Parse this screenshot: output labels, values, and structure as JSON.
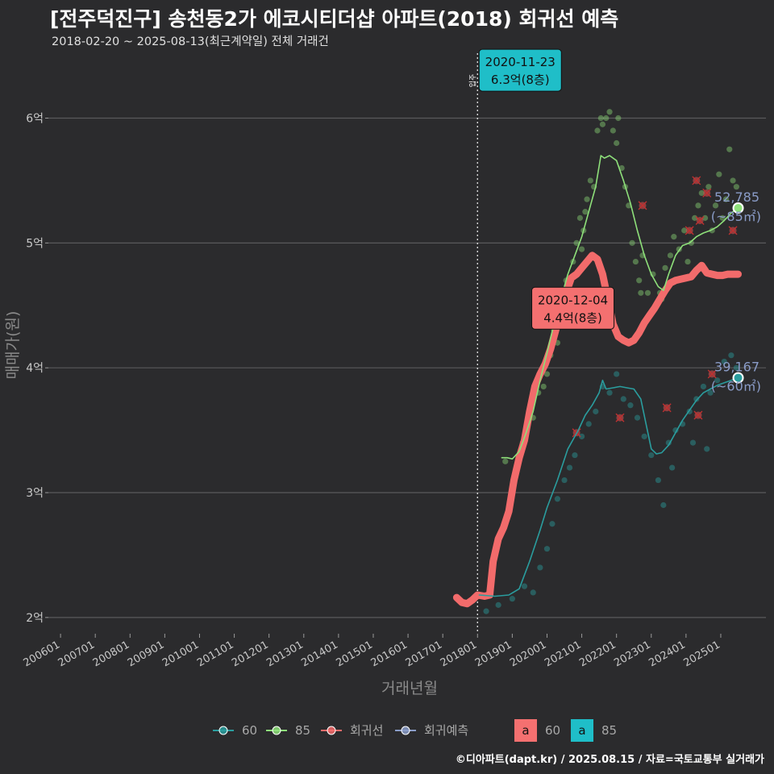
{
  "header": {
    "title": "[전주덕진구] 송천동2가 에코시티더샵 아파트(2018) 회귀선 예측",
    "subtitle": "2018-02-20 ~ 2025-08-13(최근계약일) 전체 거래건",
    "credit": "©디아파트(dapt.kr) / 2025.08.15 / 자료=국토교통부 실거래가"
  },
  "colors": {
    "background": "#2b2b2d",
    "grid": "#5a5a5c",
    "series_60": "#2a9d9e",
    "series_85": "#8ee07a",
    "regression": "#f26b6b",
    "prediction": "#8a9cc8",
    "callout_85": "#1fbec8",
    "callout_reg": "#f47070"
  },
  "chart_data": {
    "type": "scatter",
    "title": "[전주덕진구] 송천동2가 에코시티더샵 아파트(2018) 회귀선 예측",
    "xlabel": "거래년월",
    "ylabel": "매매가(원)",
    "xlim": [
      2005.65,
      2026.3
    ],
    "ylim": [
      1.87,
      6.52
    ],
    "y_ticks": [
      {
        "value": 2,
        "label": "2억"
      },
      {
        "value": 3,
        "label": "3억"
      },
      {
        "value": 4,
        "label": "4억"
      },
      {
        "value": 5,
        "label": "5억"
      },
      {
        "value": 6,
        "label": "6억"
      }
    ],
    "x_ticks": [
      {
        "value": 2006.0,
        "label": "200601"
      },
      {
        "value": 2007.0,
        "label": "200701"
      },
      {
        "value": 2008.0,
        "label": "200801"
      },
      {
        "value": 2009.0,
        "label": "200901"
      },
      {
        "value": 2010.0,
        "label": "201001"
      },
      {
        "value": 2011.0,
        "label": "201101"
      },
      {
        "value": 2012.0,
        "label": "201201"
      },
      {
        "value": 2013.0,
        "label": "201301"
      },
      {
        "value": 2014.0,
        "label": "201401"
      },
      {
        "value": 2015.0,
        "label": "201501"
      },
      {
        "value": 2016.0,
        "label": "201601"
      },
      {
        "value": 2017.0,
        "label": "201701"
      },
      {
        "value": 2018.0,
        "label": "201801"
      },
      {
        "value": 2019.0,
        "label": "201901"
      },
      {
        "value": 2020.0,
        "label": "202001"
      },
      {
        "value": 2021.0,
        "label": "202101"
      },
      {
        "value": 2022.0,
        "label": "202201"
      },
      {
        "value": 2023.0,
        "label": "202301"
      },
      {
        "value": 2024.0,
        "label": "202401"
      },
      {
        "value": 2025.0,
        "label": "202501"
      }
    ],
    "vline": {
      "x": 2018.0,
      "label": "입주"
    },
    "series": [
      {
        "name": "60",
        "kind": "trend",
        "color": "#2a9d9e",
        "x": [
          2018.05,
          2018.5,
          2018.9,
          2019.2,
          2019.5,
          2019.8,
          2020.0,
          2020.3,
          2020.6,
          2020.9,
          2021.1,
          2021.3,
          2021.5,
          2021.6,
          2021.7,
          2021.9,
          2022.1,
          2022.3,
          2022.5,
          2022.7,
          2022.85,
          2023.0,
          2023.15,
          2023.3,
          2023.5,
          2023.7,
          2023.9,
          2024.1,
          2024.3,
          2024.5,
          2024.7,
          2024.9,
          2025.1,
          2025.3,
          2025.5
        ],
        "values": [
          2.18,
          2.17,
          2.18,
          2.23,
          2.45,
          2.7,
          2.88,
          3.1,
          3.35,
          3.5,
          3.62,
          3.7,
          3.8,
          3.9,
          3.83,
          3.84,
          3.85,
          3.84,
          3.83,
          3.75,
          3.55,
          3.35,
          3.31,
          3.32,
          3.38,
          3.48,
          3.58,
          3.66,
          3.74,
          3.8,
          3.83,
          3.86,
          3.88,
          3.9,
          3.92
        ]
      },
      {
        "name": "85",
        "kind": "trend",
        "color": "#8ee07a",
        "x": [
          2018.7,
          2018.85,
          2019.0,
          2019.2,
          2019.4,
          2019.6,
          2019.8,
          2020.0,
          2020.2,
          2020.4,
          2020.6,
          2020.8,
          2021.0,
          2021.2,
          2021.4,
          2021.55,
          2021.65,
          2021.8,
          2022.0,
          2022.2,
          2022.4,
          2022.6,
          2022.8,
          2023.0,
          2023.2,
          2023.35,
          2023.5,
          2023.7,
          2023.9,
          2024.1,
          2024.3,
          2024.5,
          2024.7,
          2024.9,
          2025.1,
          2025.3,
          2025.5
        ],
        "values": [
          3.28,
          3.28,
          3.27,
          3.33,
          3.48,
          3.65,
          3.9,
          4.12,
          4.35,
          4.55,
          4.75,
          4.9,
          5.05,
          5.25,
          5.45,
          5.7,
          5.68,
          5.7,
          5.66,
          5.5,
          5.32,
          5.1,
          4.9,
          4.75,
          4.65,
          4.62,
          4.75,
          4.9,
          4.98,
          5.0,
          5.05,
          5.08,
          5.1,
          5.13,
          5.18,
          5.24,
          5.28
        ]
      },
      {
        "name": "회귀선",
        "kind": "regression",
        "color": "#f26b6b",
        "x": [
          2017.4,
          2017.55,
          2017.7,
          2017.85,
          2018.0,
          2018.2,
          2018.35,
          2018.45,
          2018.6,
          2018.75,
          2018.9,
          2019.05,
          2019.2,
          2019.35,
          2019.5,
          2019.65,
          2019.8,
          2019.95,
          2020.1,
          2020.25,
          2020.4,
          2020.55,
          2020.7,
          2020.85,
          2021.0,
          2021.15,
          2021.3,
          2021.45,
          2021.6,
          2021.75,
          2021.9,
          2022.05,
          2022.2,
          2022.35,
          2022.5,
          2022.65,
          2022.8,
          2022.95,
          2023.1,
          2023.25,
          2023.4,
          2023.55,
          2023.7,
          2023.85,
          2024.0,
          2024.15,
          2024.3,
          2024.45,
          2024.6,
          2024.75,
          2024.9,
          2025.05,
          2025.2,
          2025.35,
          2025.5
        ],
        "values": [
          2.16,
          2.12,
          2.11,
          2.14,
          2.18,
          2.17,
          2.18,
          2.45,
          2.63,
          2.72,
          2.85,
          3.1,
          3.28,
          3.42,
          3.65,
          3.85,
          3.95,
          4.03,
          4.15,
          4.3,
          4.45,
          4.6,
          4.72,
          4.75,
          4.8,
          4.85,
          4.9,
          4.87,
          4.75,
          4.55,
          4.35,
          4.25,
          4.22,
          4.2,
          4.22,
          4.28,
          4.36,
          4.42,
          4.48,
          4.55,
          4.62,
          4.68,
          4.7,
          4.71,
          4.72,
          4.73,
          4.78,
          4.82,
          4.76,
          4.75,
          4.74,
          4.74,
          4.75,
          4.75,
          4.75
        ]
      }
    ],
    "scatter_points": {
      "series_85": [
        [
          2018.8,
          3.25
        ],
        [
          2019.3,
          3.4
        ],
        [
          2019.6,
          3.6
        ],
        [
          2019.75,
          3.8
        ],
        [
          2019.9,
          3.85
        ],
        [
          2020.0,
          3.95
        ],
        [
          2020.1,
          4.1
        ],
        [
          2020.2,
          4.3
        ],
        [
          2020.3,
          4.2
        ],
        [
          2020.45,
          4.5
        ],
        [
          2020.55,
          4.7
        ],
        [
          2020.65,
          4.6
        ],
        [
          2020.75,
          4.85
        ],
        [
          2020.85,
          5.0
        ],
        [
          2020.95,
          5.2
        ],
        [
          2021.05,
          5.1
        ],
        [
          2021.15,
          5.35
        ],
        [
          2021.25,
          5.5
        ],
        [
          2021.35,
          5.45
        ],
        [
          2021.45,
          5.9
        ],
        [
          2021.55,
          6.0
        ],
        [
          2021.6,
          5.95
        ],
        [
          2021.7,
          6.0
        ],
        [
          2021.8,
          6.05
        ],
        [
          2021.9,
          5.9
        ],
        [
          2022.0,
          5.8
        ],
        [
          2022.05,
          6.0
        ],
        [
          2022.15,
          5.6
        ],
        [
          2022.25,
          5.45
        ],
        [
          2022.35,
          5.3
        ],
        [
          2022.45,
          5.0
        ],
        [
          2022.55,
          4.85
        ],
        [
          2022.65,
          4.7
        ],
        [
          2022.75,
          4.9
        ],
        [
          2022.9,
          4.6
        ],
        [
          2023.05,
          4.75
        ],
        [
          2023.15,
          4.5
        ],
        [
          2023.25,
          4.6
        ],
        [
          2023.4,
          4.8
        ],
        [
          2023.55,
          4.9
        ],
        [
          2023.65,
          5.05
        ],
        [
          2023.8,
          4.95
        ],
        [
          2023.95,
          5.1
        ],
        [
          2024.05,
          4.85
        ],
        [
          2024.15,
          5.0
        ],
        [
          2024.25,
          5.2
        ],
        [
          2024.35,
          5.3
        ],
        [
          2024.45,
          5.4
        ],
        [
          2024.55,
          5.2
        ],
        [
          2024.65,
          5.45
        ],
        [
          2024.75,
          5.1
        ],
        [
          2024.85,
          5.3
        ],
        [
          2024.95,
          5.55
        ],
        [
          2025.05,
          5.2
        ],
        [
          2025.15,
          5.35
        ],
        [
          2025.25,
          5.75
        ],
        [
          2025.35,
          5.5
        ],
        [
          2025.45,
          5.45
        ],
        [
          2020.35,
          4.4
        ],
        [
          2020.6,
          4.65
        ],
        [
          2021.0,
          4.95
        ],
        [
          2021.1,
          5.25
        ],
        [
          2022.7,
          4.6
        ],
        [
          2023.3,
          4.55
        ]
      ],
      "series_60": [
        [
          2018.25,
          2.05
        ],
        [
          2018.6,
          2.1
        ],
        [
          2019.0,
          2.15
        ],
        [
          2019.35,
          2.25
        ],
        [
          2019.6,
          2.2
        ],
        [
          2019.8,
          2.4
        ],
        [
          2020.0,
          2.55
        ],
        [
          2020.15,
          2.75
        ],
        [
          2020.3,
          2.95
        ],
        [
          2020.5,
          3.1
        ],
        [
          2020.65,
          3.2
        ],
        [
          2020.8,
          3.3
        ],
        [
          2021.0,
          3.45
        ],
        [
          2021.2,
          3.55
        ],
        [
          2021.4,
          3.65
        ],
        [
          2021.6,
          3.85
        ],
        [
          2021.8,
          3.8
        ],
        [
          2022.0,
          3.95
        ],
        [
          2022.2,
          3.75
        ],
        [
          2022.4,
          3.7
        ],
        [
          2022.6,
          3.6
        ],
        [
          2022.8,
          3.45
        ],
        [
          2023.0,
          3.3
        ],
        [
          2023.2,
          3.1
        ],
        [
          2023.35,
          2.9
        ],
        [
          2023.5,
          3.4
        ],
        [
          2023.7,
          3.5
        ],
        [
          2023.9,
          3.55
        ],
        [
          2024.1,
          3.65
        ],
        [
          2024.3,
          3.75
        ],
        [
          2024.5,
          3.85
        ],
        [
          2024.7,
          3.8
        ],
        [
          2024.9,
          3.9
        ],
        [
          2025.1,
          4.05
        ],
        [
          2025.3,
          4.1
        ],
        [
          2025.45,
          4.0
        ],
        [
          2024.2,
          3.4
        ],
        [
          2024.6,
          3.35
        ],
        [
          2023.6,
          3.2
        ]
      ],
      "prediction_marks": [
        [
          2020.85,
          3.48
        ],
        [
          2022.1,
          3.6
        ],
        [
          2022.75,
          5.3
        ],
        [
          2023.45,
          3.68
        ],
        [
          2024.1,
          5.1
        ],
        [
          2024.3,
          5.5
        ],
        [
          2024.35,
          3.62
        ],
        [
          2024.4,
          5.18
        ],
        [
          2024.6,
          5.4
        ],
        [
          2024.75,
          3.95
        ],
        [
          2025.35,
          5.1
        ]
      ]
    },
    "annotations": [
      {
        "series": "85",
        "x": 2020.9,
        "y": 6.3,
        "date": "2020-11-23",
        "price": "6.3억(8층)"
      },
      {
        "series": "회귀선",
        "x": 2020.93,
        "y": 4.4,
        "date": "2020-12-04",
        "price": "4.4억(8층)"
      }
    ],
    "end_labels": [
      {
        "series": "85",
        "x": 2025.5,
        "y": 5.28,
        "value": "52,785",
        "area": "(~85㎡)"
      },
      {
        "series": "60",
        "x": 2025.5,
        "y": 3.92,
        "value": "39,167",
        "area": "(~60㎡)"
      }
    ],
    "legend": {
      "position": "bottom",
      "items": [
        {
          "label": "60",
          "color": "#2a9d9e"
        },
        {
          "label": "85",
          "color": "#8ee07a"
        },
        {
          "label": "회귀선",
          "color": "#f26b6b"
        },
        {
          "label": "회귀예측",
          "color": "#8a9cc8"
        }
      ],
      "callout_items": [
        {
          "label": "60",
          "glyph": "a",
          "color": "#f47070"
        },
        {
          "label": "85",
          "glyph": "a",
          "color": "#1fbec8"
        }
      ]
    }
  }
}
